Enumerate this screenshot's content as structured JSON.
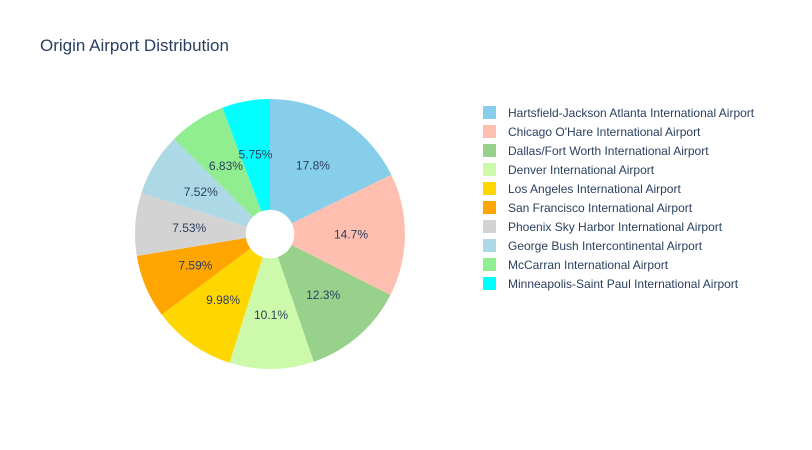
{
  "chart_data": {
    "type": "pie",
    "title": "Origin Airport Distribution",
    "hole": 0.18,
    "legend_position": "right",
    "slices": [
      {
        "label": "Hartsfield-Jackson Atlanta International Airport",
        "value": 17.8,
        "text": "17.8%",
        "color": "#87ceeb"
      },
      {
        "label": "Chicago O'Hare International Airport",
        "value": 14.7,
        "text": "14.7%",
        "color": "#ffbfb0"
      },
      {
        "label": "Dallas/Fort Worth International Airport",
        "value": 12.3,
        "text": "12.3%",
        "color": "#98d18b"
      },
      {
        "label": "Denver International Airport",
        "value": 10.1,
        "text": "10.1%",
        "color": "#cdfaaa"
      },
      {
        "label": "Los Angeles International Airport",
        "value": 9.98,
        "text": "9.98%",
        "color": "#ffd700"
      },
      {
        "label": "San Francisco International Airport",
        "value": 7.59,
        "text": "7.59%",
        "color": "#ffa500"
      },
      {
        "label": "Phoenix Sky Harbor International Airport",
        "value": 7.53,
        "text": "7.53%",
        "color": "#d3d3d3"
      },
      {
        "label": "George Bush Intercontinental Airport",
        "value": 7.52,
        "text": "7.52%",
        "color": "#add8e6"
      },
      {
        "label": "McCarran International Airport",
        "value": 6.83,
        "text": "6.83%",
        "color": "#90ee90"
      },
      {
        "label": "Minneapolis-Saint Paul International Airport",
        "value": 5.75,
        "text": "5.75%",
        "color": "#00ffff"
      }
    ]
  }
}
